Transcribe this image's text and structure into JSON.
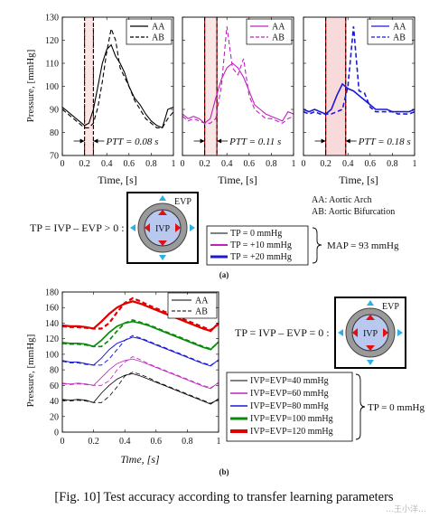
{
  "figure": {
    "caption": "[Fig. 10] Test accuracy according to transfer learning parameters",
    "label_a": "(a)",
    "label_b": "(b)",
    "watermark": "…王小洋…"
  },
  "part_a": {
    "ylabel": "Pressure, [mmHg]",
    "xlabel": "Time, [s]",
    "yticks": [
      "70",
      "80",
      "90",
      "100",
      "110",
      "120",
      "130"
    ],
    "xticks": [
      "0",
      "0.2",
      "0.4",
      "0.6",
      "0.8",
      "1"
    ],
    "legend": {
      "solid": "AA",
      "dashed": "AB"
    },
    "ptt_labels": [
      "PTT = 0.08 s",
      "PTT = 0.11 s",
      "PTT = 0.18 s"
    ],
    "abbrev": [
      "AA: Aortic Arch",
      "AB: Aortic Bifurcation"
    ],
    "equation": "TP = IVP – EVP > 0 :",
    "diagram_labels": {
      "outer": "EVP",
      "inner": "IVP"
    },
    "tp_legend": [
      "TP = 0 mmHg",
      "TP = +10 mmHg",
      "TP = +20 mmHg"
    ],
    "map_text": "MAP = 93 mmHg"
  },
  "part_b": {
    "ylabel": "Pressure, [mmHg]",
    "xlabel": "Time, [s]",
    "yticks": [
      "0",
      "20",
      "40",
      "60",
      "80",
      "100",
      "120",
      "140",
      "160",
      "180"
    ],
    "xticks": [
      "0",
      "0.2",
      "0.4",
      "0.6",
      "0.8",
      "1"
    ],
    "legend": {
      "solid": "AA",
      "dashed": "AB"
    },
    "equation": "TP = IVP – EVP = 0 :",
    "diagram_labels": {
      "outer": "EVP",
      "inner": "IVP"
    },
    "ivp_legend": [
      "IVP=EVP=40 mmHg",
      "IVP=EVP=60 mmHg",
      "IVP=EVP=80 mmHg",
      "IVP=EVP=100 mmHg",
      "IVP=EVP=120 mmHg"
    ],
    "tp_text": "TP = 0 mmHg"
  },
  "chart_data": [
    {
      "type": "line",
      "panel": "a-1",
      "color": "#000000",
      "x_range": [
        0,
        1
      ],
      "y_range": [
        70,
        130
      ],
      "ptt": 0.08,
      "window": [
        0.2,
        0.28
      ],
      "series": [
        {
          "name": "AA",
          "x": [
            0,
            0.05,
            0.1,
            0.15,
            0.2,
            0.24,
            0.28,
            0.32,
            0.36,
            0.4,
            0.44,
            0.48,
            0.52,
            0.56,
            0.6,
            0.65,
            0.7,
            0.75,
            0.8,
            0.85,
            0.9,
            0.95,
            1.0
          ],
          "y": [
            91,
            89,
            87,
            85,
            83,
            84,
            90,
            100,
            110,
            116,
            118,
            113,
            110,
            106,
            100,
            95,
            92,
            88,
            85,
            83,
            82,
            90,
            91
          ]
        },
        {
          "name": "AB",
          "x": [
            0,
            0.05,
            0.1,
            0.15,
            0.2,
            0.24,
            0.28,
            0.32,
            0.36,
            0.4,
            0.44,
            0.48,
            0.52,
            0.56,
            0.6,
            0.65,
            0.7,
            0.75,
            0.8,
            0.85,
            0.9,
            0.95,
            1.0
          ],
          "y": [
            90,
            88,
            86,
            84,
            82,
            82,
            84,
            91,
            102,
            115,
            125,
            120,
            108,
            104,
            100,
            94,
            90,
            86,
            84,
            82,
            82,
            86,
            89
          ]
        }
      ]
    },
    {
      "type": "line",
      "panel": "a-2",
      "color": "#c020c0",
      "x_range": [
        0,
        1
      ],
      "y_range": [
        70,
        130
      ],
      "ptt": 0.11,
      "window": [
        0.2,
        0.31
      ],
      "series": [
        {
          "name": "AA",
          "x": [
            0,
            0.05,
            0.1,
            0.15,
            0.2,
            0.25,
            0.3,
            0.35,
            0.4,
            0.45,
            0.5,
            0.55,
            0.6,
            0.65,
            0.7,
            0.75,
            0.8,
            0.85,
            0.9,
            0.95,
            1.0
          ],
          "y": [
            88,
            86,
            87,
            86,
            84,
            86,
            95,
            103,
            108,
            110,
            108,
            104,
            98,
            92,
            90,
            88,
            87,
            86,
            85,
            89,
            88
          ]
        },
        {
          "name": "AB",
          "x": [
            0,
            0.05,
            0.1,
            0.15,
            0.2,
            0.25,
            0.3,
            0.35,
            0.4,
            0.45,
            0.5,
            0.55,
            0.6,
            0.65,
            0.7,
            0.75,
            0.8,
            0.85,
            0.9,
            0.95,
            1.0
          ],
          "y": [
            87,
            85,
            86,
            85,
            84,
            84,
            86,
            100,
            126,
            108,
            105,
            112,
            96,
            90,
            88,
            86,
            86,
            85,
            84,
            86,
            87
          ]
        }
      ]
    },
    {
      "type": "line",
      "panel": "a-3",
      "color": "#1a1ad6",
      "x_range": [
        0,
        1
      ],
      "y_range": [
        70,
        130
      ],
      "ptt": 0.18,
      "window": [
        0.2,
        0.38
      ],
      "series": [
        {
          "name": "AA",
          "x": [
            0,
            0.05,
            0.1,
            0.15,
            0.2,
            0.25,
            0.3,
            0.35,
            0.4,
            0.45,
            0.5,
            0.55,
            0.6,
            0.65,
            0.7,
            0.75,
            0.8,
            0.85,
            0.9,
            0.95,
            1.0
          ],
          "y": [
            90,
            89,
            90,
            89,
            88,
            90,
            96,
            101,
            99,
            98,
            96,
            94,
            92,
            90,
            90,
            90,
            89,
            89,
            89,
            89,
            90
          ]
        },
        {
          "name": "AB",
          "x": [
            0,
            0.05,
            0.1,
            0.15,
            0.2,
            0.25,
            0.3,
            0.35,
            0.4,
            0.45,
            0.5,
            0.55,
            0.6,
            0.65,
            0.7,
            0.75,
            0.8,
            0.85,
            0.9,
            0.95,
            1.0
          ],
          "y": [
            89,
            88,
            89,
            88,
            88,
            88,
            89,
            90,
            100,
            126,
            98,
            97,
            91,
            89,
            89,
            89,
            89,
            88,
            88,
            88,
            89
          ]
        }
      ]
    },
    {
      "type": "line",
      "panel": "b",
      "x_range": [
        0,
        1
      ],
      "y_range": [
        0,
        180
      ],
      "x": [
        0,
        0.05,
        0.1,
        0.15,
        0.2,
        0.25,
        0.3,
        0.35,
        0.4,
        0.45,
        0.5,
        0.55,
        0.6,
        0.65,
        0.7,
        0.75,
        0.8,
        0.85,
        0.9,
        0.95,
        1.0
      ],
      "series": [
        {
          "name": "IVP=EVP=40 mmHg",
          "color": "#000000",
          "width": 0.8,
          "aa": [
            42,
            41,
            42,
            41,
            38,
            50,
            60,
            68,
            73,
            75,
            72,
            68,
            64,
            60,
            56,
            52,
            48,
            44,
            40,
            36,
            43
          ],
          "ab": [
            41,
            40,
            41,
            40,
            38,
            38,
            46,
            58,
            72,
            77,
            74,
            70,
            65,
            61,
            57,
            53,
            49,
            45,
            41,
            37,
            42
          ]
        },
        {
          "name": "IVP=EVP=60 mmHg",
          "color": "#c020c0",
          "width": 0.8,
          "aa": [
            63,
            62,
            63,
            62,
            60,
            70,
            80,
            88,
            92,
            94,
            91,
            87,
            83,
            79,
            75,
            71,
            67,
            63,
            59,
            56,
            64
          ],
          "ab": [
            62,
            61,
            62,
            61,
            60,
            60,
            66,
            80,
            90,
            97,
            93,
            88,
            84,
            80,
            76,
            72,
            68,
            64,
            60,
            57,
            63
          ]
        },
        {
          "name": "IVP=EVP=80 mmHg",
          "color": "#1a1ad6",
          "width": 1.0,
          "aa": [
            92,
            90,
            90,
            88,
            86,
            95,
            106,
            114,
            118,
            122,
            120,
            116,
            112,
            108,
            104,
            100,
            96,
            92,
            88,
            85,
            93
          ],
          "ab": [
            91,
            89,
            89,
            87,
            86,
            86,
            94,
            106,
            118,
            124,
            121,
            117,
            113,
            109,
            105,
            101,
            97,
            93,
            89,
            86,
            92
          ]
        },
        {
          "name": "IVP=EVP=100 mmHg",
          "color": "#0a8a0a",
          "width": 1.7,
          "aa": [
            115,
            114,
            114,
            113,
            110,
            118,
            128,
            136,
            140,
            142,
            140,
            137,
            133,
            129,
            125,
            121,
            117,
            113,
            109,
            106,
            116
          ],
          "ab": [
            114,
            113,
            113,
            112,
            110,
            110,
            118,
            130,
            140,
            144,
            141,
            138,
            134,
            130,
            126,
            122,
            118,
            114,
            110,
            107,
            115
          ]
        },
        {
          "name": "IVP=EVP=120 mmHg",
          "color": "#e00000",
          "width": 2.2,
          "aa": [
            137,
            136,
            136,
            135,
            133,
            142,
            152,
            160,
            165,
            168,
            165,
            161,
            157,
            153,
            149,
            145,
            141,
            137,
            133,
            130,
            140
          ],
          "ab": [
            136,
            135,
            135,
            134,
            133,
            133,
            140,
            154,
            166,
            172,
            168,
            163,
            159,
            155,
            151,
            147,
            143,
            139,
            135,
            131,
            139
          ]
        }
      ]
    }
  ]
}
